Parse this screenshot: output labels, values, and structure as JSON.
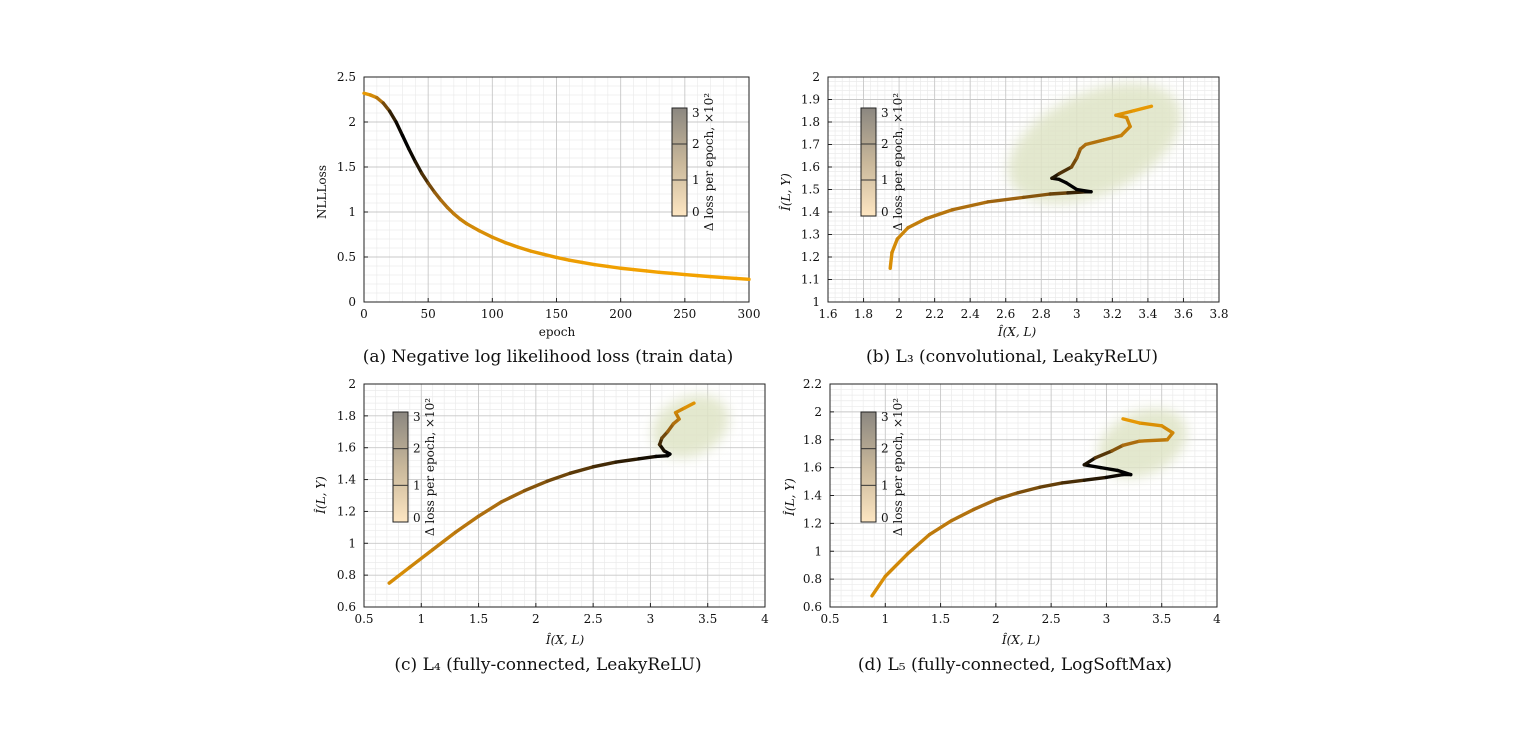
{
  "colors": {
    "low": "#f5a300",
    "mid": "#a86a10",
    "high": "#000000",
    "scatter": "#dfe4c6",
    "grid_major": "#c8c8c8",
    "grid_minor": "#ebebeb"
  },
  "colorbar": {
    "label": "Δ loss per epoch, ×10²",
    "ticks": [
      "0",
      "1",
      "2",
      "3"
    ]
  },
  "chart_data": [
    {
      "id": "a",
      "type": "line",
      "caption": "(a) Negative log likelihood loss (train data)",
      "xlabel": "epoch",
      "ylabel": "NLLLoss",
      "xlim": [
        0,
        300
      ],
      "ylim": [
        0,
        2.5
      ],
      "xticks": [
        "0",
        "50",
        "100",
        "150",
        "200",
        "250",
        "300"
      ],
      "yticks": [
        "0",
        "0.5",
        "1",
        "1.5",
        "2",
        "2.5"
      ],
      "grid": true,
      "colorbar": true,
      "series": [
        {
          "x": [
            0,
            5,
            10,
            15,
            20,
            25,
            30,
            35,
            40,
            45,
            50,
            55,
            60,
            65,
            70,
            75,
            80,
            85,
            90,
            100,
            110,
            120,
            130,
            140,
            150,
            160,
            170,
            180,
            190,
            200,
            210,
            220,
            230,
            240,
            250,
            260,
            270,
            280,
            290,
            300
          ],
          "y": [
            2.32,
            2.3,
            2.27,
            2.21,
            2.12,
            2.0,
            1.85,
            1.7,
            1.56,
            1.43,
            1.32,
            1.22,
            1.13,
            1.05,
            0.98,
            0.92,
            0.87,
            0.83,
            0.79,
            0.72,
            0.66,
            0.61,
            0.565,
            0.53,
            0.495,
            0.465,
            0.44,
            0.415,
            0.395,
            0.375,
            0.36,
            0.345,
            0.33,
            0.318,
            0.305,
            0.293,
            0.282,
            0.272,
            0.262,
            0.252
          ],
          "delta": [
            0.2,
            0.4,
            0.9,
            1.6,
            2.3,
            2.8,
            3.0,
            3.0,
            2.8,
            2.5,
            2.1,
            1.8,
            1.5,
            1.3,
            1.1,
            0.9,
            0.8,
            0.7,
            0.6,
            0.5,
            0.4,
            0.35,
            0.3,
            0.25,
            0.2,
            0.18,
            0.15,
            0.12,
            0.1,
            0.08,
            0.07,
            0.06,
            0.05,
            0.04,
            0.04,
            0.03,
            0.03,
            0.02,
            0.02,
            0.02
          ]
        }
      ]
    },
    {
      "id": "b",
      "type": "line",
      "caption": "(b) L₃ (convolutional, LeakyReLU)",
      "xlabel": "Î(X, L)",
      "ylabel": "Î(L, Y)",
      "xlim": [
        1.6,
        3.8
      ],
      "ylim": [
        1,
        2
      ],
      "xticks": [
        "1.6",
        "1.8",
        "2",
        "2.2",
        "2.4",
        "2.6",
        "2.8",
        "3",
        "3.2",
        "3.4",
        "3.6",
        "3.8"
      ],
      "yticks": [
        "1",
        "1.1",
        "1.2",
        "1.3",
        "1.4",
        "1.5",
        "1.6",
        "1.7",
        "1.8",
        "1.9",
        "2"
      ],
      "grid": true,
      "colorbar": true,
      "scatter_cloud": [
        2.58,
        3.62,
        1.48,
        1.93
      ],
      "series": [
        {
          "x": [
            1.95,
            1.96,
            1.99,
            2.05,
            2.15,
            2.3,
            2.5,
            2.7,
            2.85,
            2.95,
            3.05,
            3.08,
            3.0,
            2.94,
            2.9,
            2.86,
            2.9,
            2.97,
            3.0,
            3.02,
            3.05,
            3.15,
            3.25,
            3.3,
            3.28,
            3.22,
            3.32,
            3.42
          ],
          "y": [
            1.15,
            1.22,
            1.28,
            1.33,
            1.37,
            1.41,
            1.445,
            1.465,
            1.48,
            1.485,
            1.49,
            1.49,
            1.5,
            1.53,
            1.545,
            1.55,
            1.57,
            1.6,
            1.64,
            1.68,
            1.7,
            1.72,
            1.74,
            1.78,
            1.82,
            1.83,
            1.85,
            1.87
          ],
          "delta": [
            0.5,
            0.6,
            0.7,
            0.9,
            1.1,
            1.3,
            1.5,
            1.7,
            1.9,
            2.2,
            2.8,
            3.0,
            3.0,
            3.0,
            3.0,
            2.9,
            2.5,
            2.1,
            1.8,
            1.6,
            1.4,
            1.2,
            1.0,
            0.8,
            0.7,
            0.5,
            0.35,
            0.2
          ]
        }
      ]
    },
    {
      "id": "c",
      "type": "line",
      "caption": "(c) L₄ (fully-connected, LeakyReLU)",
      "xlabel": "Î(X, L)",
      "ylabel": "Î(L, Y)",
      "xlim": [
        0.5,
        4
      ],
      "ylim": [
        0.6,
        2
      ],
      "xticks": [
        "0.5",
        "1",
        "1.5",
        "2",
        "2.5",
        "3",
        "3.5",
        "4"
      ],
      "yticks": [
        "0.6",
        "0.8",
        "1",
        "1.2",
        "1.4",
        "1.6",
        "1.8",
        "2"
      ],
      "grid": true,
      "colorbar": true,
      "scatter_cloud": [
        3.0,
        3.7,
        1.55,
        1.92
      ],
      "series": [
        {
          "x": [
            0.72,
            0.9,
            1.1,
            1.3,
            1.5,
            1.7,
            1.9,
            2.1,
            2.3,
            2.5,
            2.7,
            2.9,
            3.05,
            3.15,
            3.17,
            3.12,
            3.08,
            3.1,
            3.15,
            3.2,
            3.25,
            3.22,
            3.3,
            3.38
          ],
          "y": [
            0.75,
            0.85,
            0.96,
            1.07,
            1.17,
            1.26,
            1.33,
            1.39,
            1.44,
            1.48,
            1.51,
            1.53,
            1.545,
            1.55,
            1.56,
            1.58,
            1.62,
            1.66,
            1.7,
            1.75,
            1.78,
            1.82,
            1.85,
            1.88
          ],
          "delta": [
            0.5,
            0.7,
            0.9,
            1.1,
            1.3,
            1.5,
            1.7,
            1.9,
            2.1,
            2.3,
            2.5,
            2.7,
            2.9,
            3.0,
            3.0,
            3.0,
            2.6,
            2.2,
            1.8,
            1.5,
            1.2,
            0.9,
            0.6,
            0.3
          ]
        }
      ]
    },
    {
      "id": "d",
      "type": "line",
      "caption": "(d) L₅ (fully-connected, LogSoftMax)",
      "xlabel": "Î(X, L)",
      "ylabel": "Î(L, Y)",
      "xlim": [
        0.5,
        4
      ],
      "ylim": [
        0.6,
        2.2
      ],
      "xticks": [
        "0.5",
        "1",
        "1.5",
        "2",
        "2.5",
        "3",
        "3.5",
        "4"
      ],
      "yticks": [
        "0.6",
        "0.8",
        "1",
        "1.2",
        "1.4",
        "1.6",
        "1.8",
        "2",
        "2.2"
      ],
      "grid": true,
      "colorbar": true,
      "scatter_cloud": [
        2.9,
        3.75,
        1.55,
        2.0
      ],
      "series": [
        {
          "x": [
            0.88,
            1.0,
            1.2,
            1.4,
            1.6,
            1.8,
            2.0,
            2.2,
            2.4,
            2.6,
            2.8,
            3.0,
            3.15,
            3.22,
            3.1,
            2.95,
            2.8,
            2.9,
            3.05,
            3.15,
            3.3,
            3.55,
            3.6,
            3.5,
            3.3,
            3.15
          ],
          "y": [
            0.68,
            0.82,
            0.98,
            1.12,
            1.22,
            1.3,
            1.37,
            1.42,
            1.46,
            1.49,
            1.51,
            1.53,
            1.55,
            1.55,
            1.58,
            1.6,
            1.62,
            1.67,
            1.72,
            1.76,
            1.79,
            1.8,
            1.85,
            1.9,
            1.92,
            1.95
          ],
          "delta": [
            0.5,
            0.6,
            0.8,
            1.0,
            1.2,
            1.4,
            1.6,
            1.8,
            2.0,
            2.2,
            2.5,
            2.8,
            3.0,
            3.0,
            3.0,
            3.0,
            3.0,
            2.5,
            2.0,
            1.6,
            1.3,
            1.0,
            0.8,
            0.6,
            0.4,
            0.2
          ]
        }
      ]
    }
  ]
}
